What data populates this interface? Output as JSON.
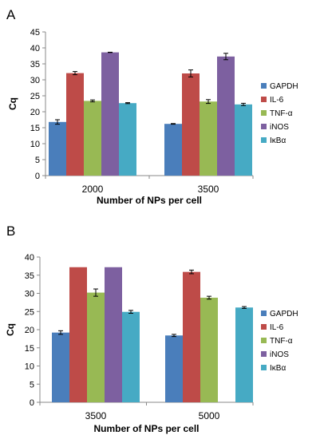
{
  "chart_data": [
    {
      "type": "bar",
      "panel_label": "A",
      "categories": [
        "2000",
        "3500"
      ],
      "xlabel": "Number of NPs per cell",
      "ylabel": "Cq",
      "ylim": [
        0,
        45
      ],
      "yticks": [
        0,
        5,
        10,
        15,
        20,
        25,
        30,
        35,
        40,
        45
      ],
      "grid": false,
      "legend_position": "right",
      "series": [
        {
          "name": "GAPDH",
          "color": "#4a7ebb",
          "values": [
            16.8,
            16.2
          ],
          "errors": [
            0.7,
            0.1
          ]
        },
        {
          "name": "IL-6",
          "color": "#be4b48",
          "values": [
            32.1,
            32.0
          ],
          "errors": [
            0.5,
            1.1
          ]
        },
        {
          "name": "TNF-α",
          "color": "#98b954",
          "values": [
            23.4,
            23.2
          ],
          "errors": [
            0.3,
            0.6
          ]
        },
        {
          "name": "iNOS",
          "color": "#7d60a0",
          "values": [
            38.6,
            37.3
          ],
          "errors": [
            0.05,
            1.0
          ]
        },
        {
          "name": "IκBα",
          "color": "#46aac4",
          "values": [
            22.7,
            22.3
          ],
          "errors": [
            0.15,
            0.35
          ]
        }
      ]
    },
    {
      "type": "bar",
      "panel_label": "B",
      "categories": [
        "3500",
        "5000"
      ],
      "xlabel": "Number of NPs per cell",
      "ylabel": "Cq",
      "ylim": [
        0,
        40
      ],
      "yticks": [
        0,
        5,
        10,
        15,
        20,
        25,
        30,
        35,
        40
      ],
      "grid": false,
      "legend_position": "right",
      "series": [
        {
          "name": "GAPDH",
          "color": "#4a7ebb",
          "values": [
            19.2,
            18.4
          ],
          "errors": [
            0.5,
            0.3
          ]
        },
        {
          "name": "IL-6",
          "color": "#be4b48",
          "values": [
            37.2,
            35.9
          ],
          "errors": [
            0,
            0.5
          ]
        },
        {
          "name": "TNF-α",
          "color": "#98b954",
          "values": [
            30.2,
            28.8
          ],
          "errors": [
            1.0,
            0.4
          ]
        },
        {
          "name": "iNOS",
          "color": "#7d60a0",
          "values": [
            37.2,
            null
          ],
          "errors": [
            0,
            0
          ]
        },
        {
          "name": "IκBα",
          "color": "#46aac4",
          "values": [
            24.9,
            26.1
          ],
          "errors": [
            0.4,
            0.25
          ]
        }
      ]
    }
  ]
}
